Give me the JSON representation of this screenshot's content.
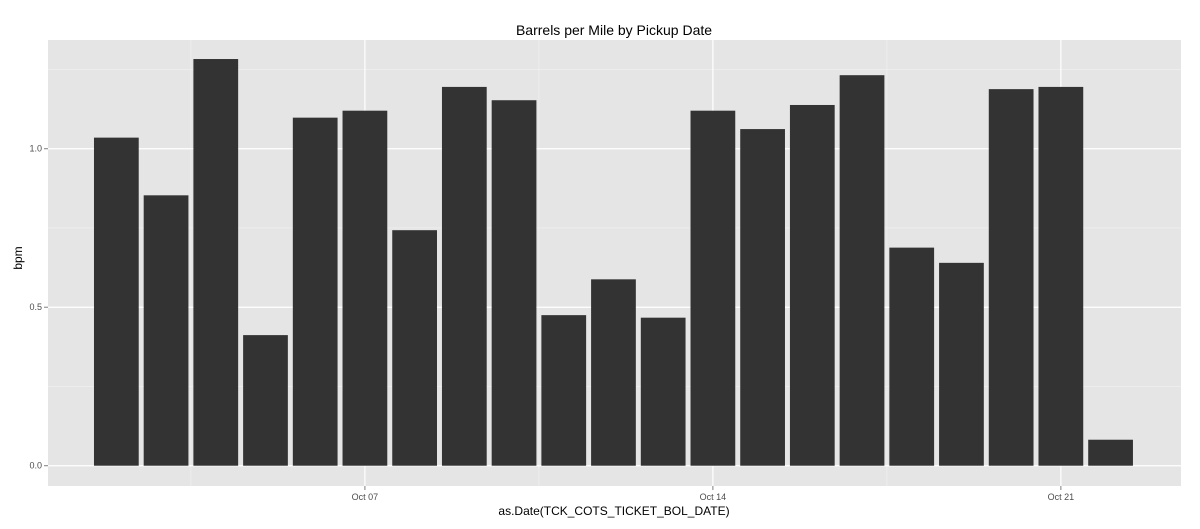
{
  "colors": {
    "panel_background": "#e5e5e5",
    "grid_major": "#ffffff",
    "grid_minor": "#f2f2f2",
    "bar_fill": "#333333",
    "tick_label": "#4d4d4d"
  },
  "chart_data": {
    "type": "bar",
    "title": "Barrels per Mile by Pickup Date",
    "xlabel": "as.Date(TCK_COTS_TICKET_BOL_DATE)",
    "ylabel": "bpm",
    "x": [
      "2013-10-02",
      "2013-10-03",
      "2013-10-04",
      "2013-10-05",
      "2013-10-06",
      "2013-10-07",
      "2013-10-08",
      "2013-10-09",
      "2013-10-10",
      "2013-10-11",
      "2013-10-12",
      "2013-10-13",
      "2013-10-14",
      "2013-10-15",
      "2013-10-16",
      "2013-10-17",
      "2013-10-18",
      "2013-10-19",
      "2013-10-20",
      "2013-10-21",
      "2013-10-22"
    ],
    "values": [
      1.035,
      0.853,
      1.283,
      0.412,
      1.098,
      1.12,
      0.743,
      1.195,
      1.153,
      0.475,
      0.588,
      0.467,
      1.12,
      1.062,
      1.138,
      1.232,
      0.688,
      0.64,
      1.188,
      1.195,
      0.082
    ],
    "xlim": [
      "2013-09-30T15:00",
      "2013-10-23T10:00"
    ],
    "ylim": [
      -0.064,
      1.343
    ],
    "x_ticks": [
      {
        "date": "2013-10-07",
        "label": "Oct 07"
      },
      {
        "date": "2013-10-14",
        "label": "Oct 14"
      },
      {
        "date": "2013-10-21",
        "label": "Oct 21"
      }
    ],
    "y_ticks": [
      {
        "value": 0.0,
        "label": "0.0"
      },
      {
        "value": 0.5,
        "label": "0.5"
      },
      {
        "value": 1.0,
        "label": "1.0"
      }
    ],
    "y_minor_ticks": [
      0.25,
      0.75,
      1.25
    ],
    "x_minor_ticks": [
      "2013-10-03T12:00",
      "2013-10-10T12:00",
      "2013-10-17T12:00"
    ],
    "grid": true,
    "legend": "none"
  }
}
